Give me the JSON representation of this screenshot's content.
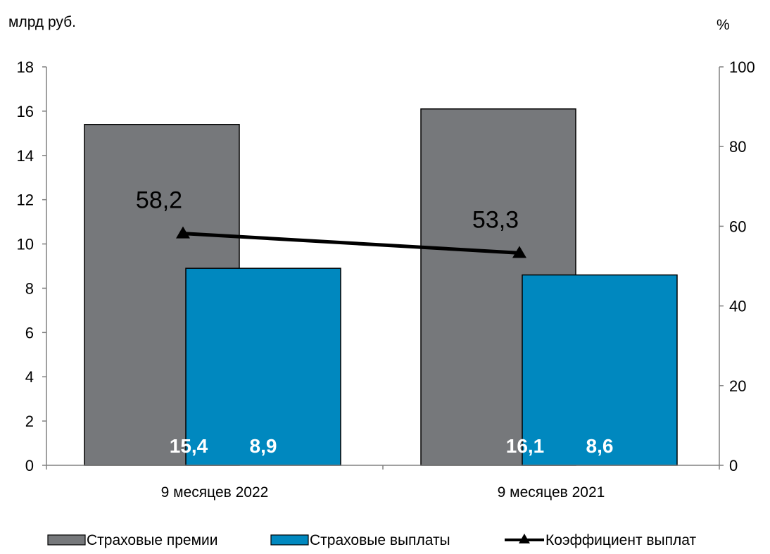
{
  "chart_data": {
    "type": "bar",
    "categories": [
      "9 месяцев 2022",
      "9 месяцев 2021"
    ],
    "series": [
      {
        "name": "Страховые премии",
        "type": "bar",
        "axis": "left",
        "values": [
          15.4,
          16.1
        ],
        "labels": [
          "15,4",
          "16,1"
        ],
        "color": "#76787B"
      },
      {
        "name": "Страховые выплаты",
        "type": "bar",
        "axis": "left",
        "values": [
          8.9,
          8.6
        ],
        "labels": [
          "8,9",
          "8,6"
        ],
        "color": "#0088BF"
      },
      {
        "name": "Коэффициент выплат",
        "type": "line",
        "axis": "right",
        "values": [
          58.2,
          53.3
        ],
        "labels": [
          "58,2",
          "53,3"
        ],
        "color": "#000000"
      }
    ],
    "y_left": {
      "unit": "млрд руб.",
      "ylim": [
        0,
        18
      ],
      "ticks": [
        "0",
        "2",
        "4",
        "6",
        "8",
        "10",
        "12",
        "14",
        "16",
        "18"
      ]
    },
    "y_right": {
      "unit": "%",
      "ylim": [
        0,
        100
      ],
      "ticks": [
        "0",
        "20",
        "40",
        "60",
        "80",
        "100"
      ]
    },
    "grid": false,
    "legend_position": "bottom"
  }
}
